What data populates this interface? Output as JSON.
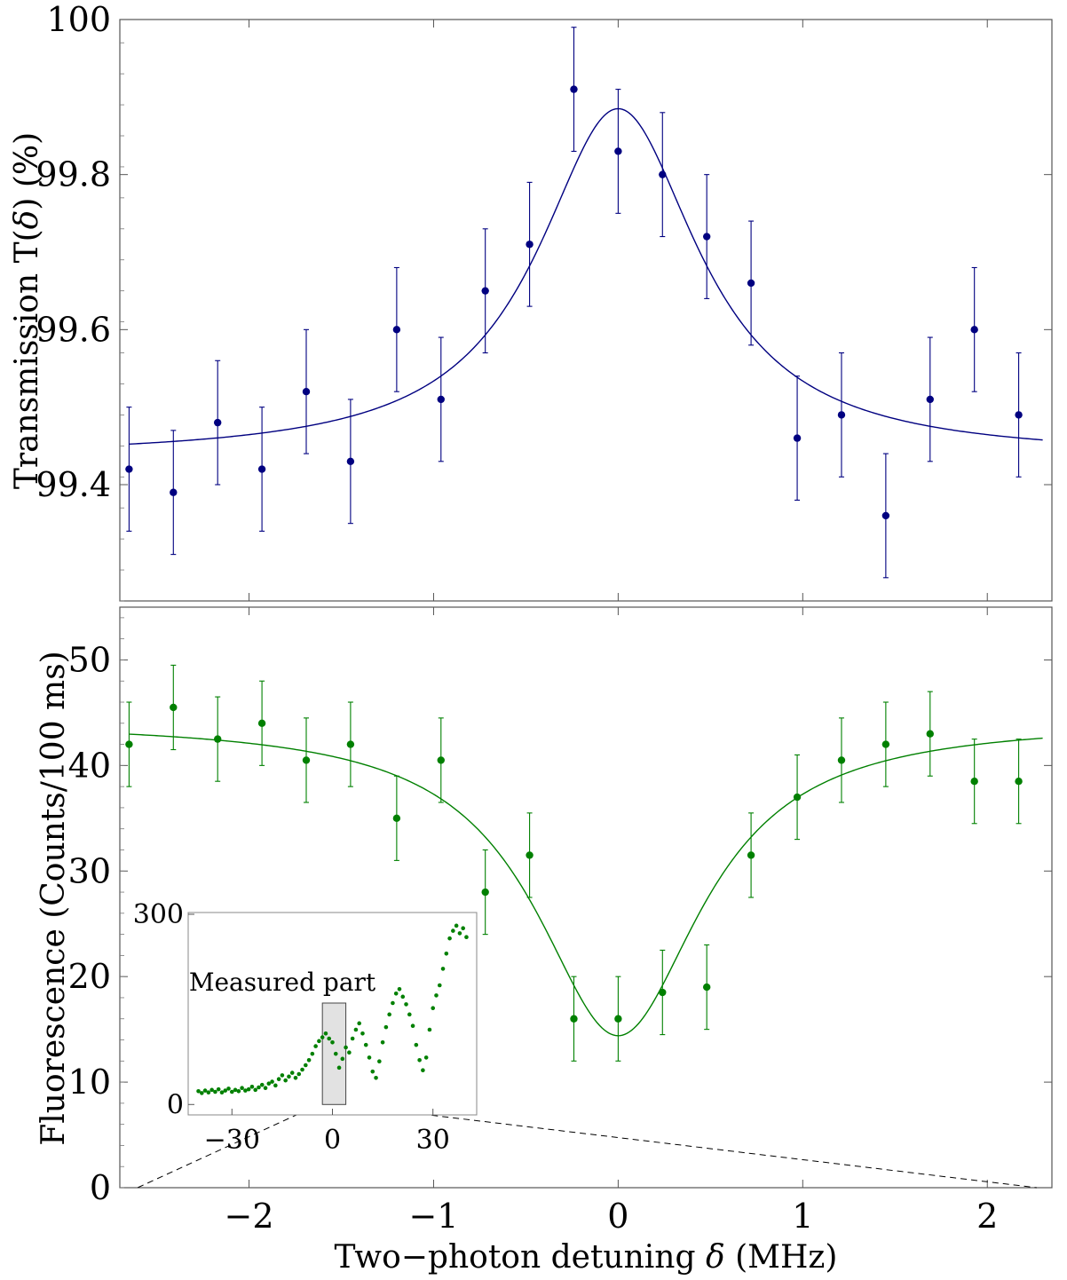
{
  "colors": {
    "top": "#000080",
    "bottom": "#008000",
    "frame": "#555555"
  },
  "chart_data": [
    {
      "type": "scatter",
      "name": "transmission",
      "xlim": [
        -2.7,
        2.35
      ],
      "ylim": [
        99.25,
        100.0
      ],
      "yticks": [
        99.4,
        99.6,
        99.8,
        100.0
      ],
      "ytick_labels": [
        "99.4",
        "99.6",
        "99.8",
        "100"
      ],
      "xticks": [
        -2,
        -1,
        0,
        1,
        2
      ],
      "ylabel_text": "Transmission  T(",
      "ylabel_symbol": "δ",
      "ylabel_tail": ") (%)",
      "points": [
        {
          "x": -2.65,
          "y": 99.42,
          "err": 0.08
        },
        {
          "x": -2.41,
          "y": 99.39,
          "err": 0.08
        },
        {
          "x": -2.17,
          "y": 99.48,
          "err": 0.08
        },
        {
          "x": -1.93,
          "y": 99.42,
          "err": 0.08
        },
        {
          "x": -1.69,
          "y": 99.52,
          "err": 0.08
        },
        {
          "x": -1.45,
          "y": 99.43,
          "err": 0.08
        },
        {
          "x": -1.2,
          "y": 99.6,
          "err": 0.08
        },
        {
          "x": -0.96,
          "y": 99.51,
          "err": 0.08
        },
        {
          "x": -0.72,
          "y": 99.65,
          "err": 0.08
        },
        {
          "x": -0.48,
          "y": 99.71,
          "err": 0.08
        },
        {
          "x": -0.24,
          "y": 99.91,
          "err": 0.08
        },
        {
          "x": 0.0,
          "y": 99.83,
          "err": 0.08
        },
        {
          "x": 0.24,
          "y": 99.8,
          "err": 0.08
        },
        {
          "x": 0.48,
          "y": 99.72,
          "err": 0.08
        },
        {
          "x": 0.72,
          "y": 99.66,
          "err": 0.08
        },
        {
          "x": 0.97,
          "y": 99.46,
          "err": 0.08
        },
        {
          "x": 1.21,
          "y": 99.49,
          "err": 0.08
        },
        {
          "x": 1.45,
          "y": 99.36,
          "err": 0.08
        },
        {
          "x": 1.69,
          "y": 99.51,
          "err": 0.08
        },
        {
          "x": 1.93,
          "y": 99.6,
          "err": 0.08
        },
        {
          "x": 2.17,
          "y": 99.49,
          "err": 0.08
        }
      ],
      "fit": {
        "model": "lorentzian",
        "baseline": 99.435,
        "amplitude": 0.45,
        "center": 0.0,
        "hwhm": 0.53,
        "x_range": [
          -2.65,
          2.3
        ]
      }
    },
    {
      "type": "scatter",
      "name": "fluorescence",
      "xlim": [
        -2.7,
        2.35
      ],
      "ylim": [
        0,
        55
      ],
      "yticks": [
        0,
        10,
        20,
        30,
        40,
        50
      ],
      "ytick_labels": [
        "0",
        "10",
        "20",
        "30",
        "40",
        "50"
      ],
      "xticks": [
        -2,
        -1,
        0,
        1,
        2
      ],
      "xtick_labels": [
        "−2",
        "−1",
        "0",
        "1",
        "2"
      ],
      "ylabel": "Fluorescence (Counts/100 ms)",
      "xlabel_text": "Two−photon detuning ",
      "xlabel_symbol": "δ",
      "xlabel_tail": " (MHz)",
      "points": [
        {
          "x": -2.65,
          "y": 42.0,
          "err": 4.0
        },
        {
          "x": -2.41,
          "y": 45.5,
          "err": 4.0
        },
        {
          "x": -2.17,
          "y": 42.5,
          "err": 4.0
        },
        {
          "x": -1.93,
          "y": 44.0,
          "err": 4.0
        },
        {
          "x": -1.69,
          "y": 40.5,
          "err": 4.0
        },
        {
          "x": -1.45,
          "y": 42.0,
          "err": 4.0
        },
        {
          "x": -1.2,
          "y": 35.0,
          "err": 4.0
        },
        {
          "x": -0.96,
          "y": 40.5,
          "err": 4.0
        },
        {
          "x": -0.72,
          "y": 28.0,
          "err": 4.0
        },
        {
          "x": -0.48,
          "y": 31.5,
          "err": 4.0
        },
        {
          "x": -0.24,
          "y": 16.0,
          "err": 4.0
        },
        {
          "x": 0.0,
          "y": 16.0,
          "err": 4.0
        },
        {
          "x": 0.24,
          "y": 18.5,
          "err": 4.0
        },
        {
          "x": 0.48,
          "y": 19.0,
          "err": 4.0
        },
        {
          "x": 0.72,
          "y": 31.5,
          "err": 4.0
        },
        {
          "x": 0.97,
          "y": 37.0,
          "err": 4.0
        },
        {
          "x": 1.21,
          "y": 40.5,
          "err": 4.0
        },
        {
          "x": 1.45,
          "y": 42.0,
          "err": 4.0
        },
        {
          "x": 1.69,
          "y": 43.0,
          "err": 4.0
        },
        {
          "x": 1.93,
          "y": 38.5,
          "err": 4.0
        },
        {
          "x": 2.17,
          "y": 38.5,
          "err": 4.0
        }
      ],
      "fit": {
        "model": "lorentzian",
        "baseline": 44.2,
        "amplitude": -29.8,
        "center": 0.0,
        "hwhm": 0.55,
        "x_range": [
          -2.65,
          2.3
        ]
      },
      "inset": {
        "xlim": [
          -42,
          42
        ],
        "ylim": [
          -15,
          300
        ],
        "xticks": [
          -30,
          0,
          30
        ],
        "xtick_labels": [
          "−30",
          "0",
          "30"
        ],
        "yticks": [
          0,
          300
        ],
        "ytick_labels": [
          "0",
          "300"
        ],
        "label": "Measured part",
        "highlight_x": [
          -3,
          4
        ],
        "highlight_y": [
          0,
          160
        ],
        "points": [
          [
            -40,
            21
          ],
          [
            -39,
            18
          ],
          [
            -38,
            22
          ],
          [
            -37,
            19
          ],
          [
            -36,
            23
          ],
          [
            -35,
            20
          ],
          [
            -34,
            24
          ],
          [
            -33,
            19
          ],
          [
            -32,
            22
          ],
          [
            -31,
            25
          ],
          [
            -30,
            20
          ],
          [
            -29,
            23
          ],
          [
            -28,
            21
          ],
          [
            -27,
            26
          ],
          [
            -26,
            22
          ],
          [
            -25,
            24
          ],
          [
            -24,
            28
          ],
          [
            -23,
            23
          ],
          [
            -22,
            27
          ],
          [
            -21,
            31
          ],
          [
            -20,
            26
          ],
          [
            -19,
            33
          ],
          [
            -18,
            36
          ],
          [
            -17,
            30
          ],
          [
            -16,
            40
          ],
          [
            -15,
            46
          ],
          [
            -14,
            38
          ],
          [
            -13,
            44
          ],
          [
            -12,
            50
          ],
          [
            -11,
            42
          ],
          [
            -10,
            48
          ],
          [
            -9,
            55
          ],
          [
            -8,
            62
          ],
          [
            -7,
            70
          ],
          [
            -6,
            80
          ],
          [
            -5,
            92
          ],
          [
            -4,
            100
          ],
          [
            -3,
            106
          ],
          [
            -2,
            112
          ],
          [
            -1,
            104
          ],
          [
            0,
            98
          ],
          [
            1,
            80
          ],
          [
            2,
            58
          ],
          [
            3,
            72
          ],
          [
            4,
            90
          ],
          [
            5,
            82
          ],
          [
            6,
            104
          ],
          [
            7,
            118
          ],
          [
            8,
            128
          ],
          [
            9,
            112
          ],
          [
            10,
            94
          ],
          [
            11,
            74
          ],
          [
            12,
            52
          ],
          [
            13,
            42
          ],
          [
            14,
            68
          ],
          [
            15,
            98
          ],
          [
            16,
            122
          ],
          [
            17,
            142
          ],
          [
            18,
            160
          ],
          [
            19,
            175
          ],
          [
            20,
            182
          ],
          [
            21,
            170
          ],
          [
            22,
            158
          ],
          [
            23,
            142
          ],
          [
            24,
            124
          ],
          [
            25,
            94
          ],
          [
            26,
            70
          ],
          [
            27,
            54
          ],
          [
            28,
            74
          ],
          [
            29,
            118
          ],
          [
            30,
            152
          ],
          [
            31,
            172
          ],
          [
            32,
            188
          ],
          [
            33,
            214
          ],
          [
            34,
            238
          ],
          [
            35,
            262
          ],
          [
            36,
            274
          ],
          [
            37,
            282
          ],
          [
            38,
            270
          ],
          [
            39,
            278
          ],
          [
            40,
            264
          ]
        ]
      }
    }
  ]
}
